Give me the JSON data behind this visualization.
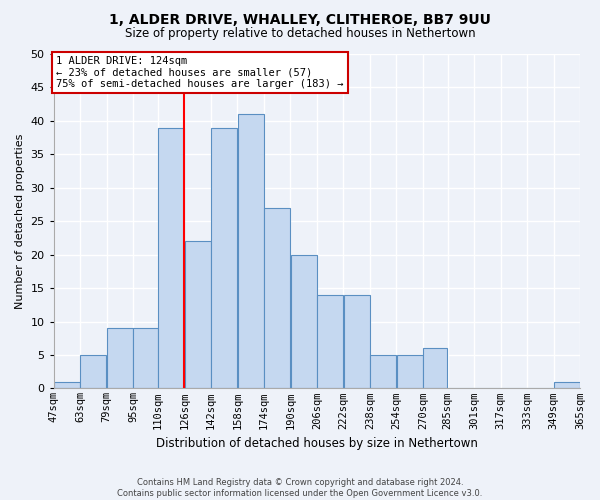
{
  "title_line1": "1, ALDER DRIVE, WHALLEY, CLITHEROE, BB7 9UU",
  "title_line2": "Size of property relative to detached houses in Nethertown",
  "xlabel": "Distribution of detached houses by size in Nethertown",
  "ylabel": "Number of detached properties",
  "footer_line1": "Contains HM Land Registry data © Crown copyright and database right 2024.",
  "footer_line2": "Contains public sector information licensed under the Open Government Licence v3.0.",
  "annotation_line1": "1 ALDER DRIVE: 124sqm",
  "annotation_line2": "← 23% of detached houses are smaller (57)",
  "annotation_line3": "75% of semi-detached houses are larger (183) →",
  "bar_color": "#c5d8f0",
  "bar_edge_color": "#5a8fc2",
  "red_line_x": 126,
  "bins": [
    47,
    63,
    79,
    95,
    110,
    126,
    142,
    158,
    174,
    190,
    206,
    222,
    238,
    254,
    270,
    285,
    301,
    317,
    333,
    349,
    365
  ],
  "bar_heights": [
    1,
    5,
    9,
    9,
    39,
    22,
    39,
    41,
    27,
    20,
    14,
    14,
    5,
    5,
    6,
    0,
    0,
    0,
    0,
    1
  ],
  "ylim": [
    0,
    50
  ],
  "yticks": [
    0,
    5,
    10,
    15,
    20,
    25,
    30,
    35,
    40,
    45,
    50
  ],
  "bg_color": "#eef2f9",
  "grid_color": "#ffffff",
  "annotation_box_color": "#ffffff",
  "annotation_box_edge": "#cc0000"
}
